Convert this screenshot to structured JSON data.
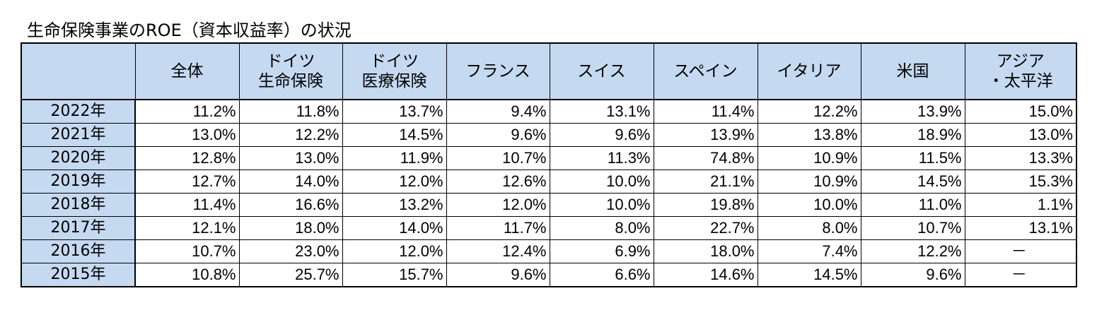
{
  "title": "生命保険事業のROE（資本収益率）の状況",
  "table": {
    "headers": [
      {
        "line1": "",
        "line2": ""
      },
      {
        "line1": "全体",
        "line2": ""
      },
      {
        "line1": "ドイツ",
        "line2": "生命保険"
      },
      {
        "line1": "ドイツ",
        "line2": "医療保険"
      },
      {
        "line1": "フランス",
        "line2": ""
      },
      {
        "line1": "スイス",
        "line2": ""
      },
      {
        "line1": "スペイン",
        "line2": ""
      },
      {
        "line1": "イタリア",
        "line2": ""
      },
      {
        "line1": "米国",
        "line2": ""
      },
      {
        "line1": "アジア",
        "line2": "・太平洋"
      }
    ],
    "rows": [
      {
        "year": "2022年",
        "values": [
          "11.2%",
          "11.8%",
          "13.7%",
          "9.4%",
          "13.1%",
          "11.4%",
          "12.2%",
          "13.9%",
          "15.0%"
        ]
      },
      {
        "year": "2021年",
        "values": [
          "13.0%",
          "12.2%",
          "14.5%",
          "9.6%",
          "9.6%",
          "13.9%",
          "13.8%",
          "18.9%",
          "13.0%"
        ]
      },
      {
        "year": "2020年",
        "values": [
          "12.8%",
          "13.0%",
          "11.9%",
          "10.7%",
          "11.3%",
          "74.8%",
          "10.9%",
          "11.5%",
          "13.3%"
        ]
      },
      {
        "year": "2019年",
        "values": [
          "12.7%",
          "14.0%",
          "12.0%",
          "12.6%",
          "10.0%",
          "21.1%",
          "10.9%",
          "14.5%",
          "15.3%"
        ]
      },
      {
        "year": "2018年",
        "values": [
          "11.4%",
          "16.6%",
          "13.2%",
          "12.0%",
          "10.0%",
          "19.8%",
          "10.0%",
          "11.0%",
          "1.1%"
        ]
      },
      {
        "year": "2017年",
        "values": [
          "12.1%",
          "18.0%",
          "14.0%",
          "11.7%",
          "8.0%",
          "22.7%",
          "8.0%",
          "10.7%",
          "13.1%"
        ]
      },
      {
        "year": "2016年",
        "values": [
          "10.7%",
          "23.0%",
          "12.0%",
          "12.4%",
          "6.9%",
          "18.0%",
          "7.4%",
          "12.2%",
          "－"
        ]
      },
      {
        "year": "2015年",
        "values": [
          "10.8%",
          "25.7%",
          "15.7%",
          "9.6%",
          "6.6%",
          "14.6%",
          "14.5%",
          "9.6%",
          "－"
        ]
      }
    ]
  }
}
